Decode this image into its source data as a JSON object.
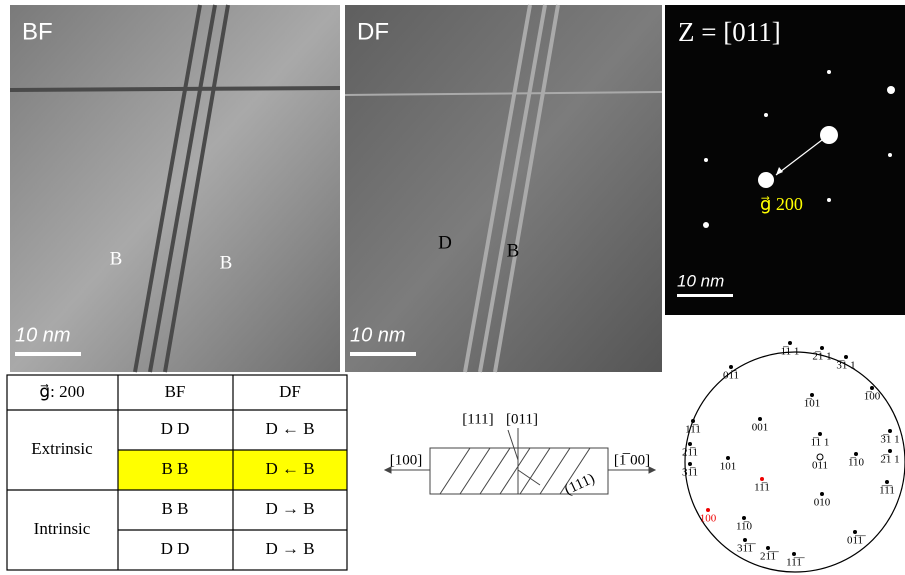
{
  "panels": [
    {
      "label": "BF",
      "markers": [
        "B",
        "B"
      ],
      "scale_bar": "10 nm"
    },
    {
      "label": "DF",
      "markers": [
        "D",
        "B"
      ],
      "scale_bar": "10 nm"
    }
  ],
  "diffraction": {
    "zone": "Z = [011]",
    "g_label": "g⃗ 200",
    "scale_bar": "10 nm"
  },
  "table": {
    "header": [
      "g⃗: 200",
      "BF",
      "DF"
    ],
    "groups": [
      {
        "name": "Extrinsic",
        "rows": [
          [
            "D   D",
            "D ← B"
          ],
          [
            "B   B",
            "D ← B"
          ]
        ]
      },
      {
        "name": "Intrinsic",
        "rows": [
          [
            "B   B",
            "D → B"
          ],
          [
            "D   D",
            "D → B"
          ]
        ]
      }
    ]
  },
  "schematic": {
    "labels": [
      "[111]",
      "[011]",
      "[100]",
      "[1̅ 00]",
      "(111)"
    ]
  },
  "stereogram": {
    "labels": [
      "1̅1 1",
      "2̅1 1",
      "3̅1 1",
      "01̅1",
      "1̅00",
      "1̅01",
      "001",
      "1̅1 1",
      "3̅1 1",
      "2̅1 1",
      "1̅1̅1",
      "1̅10",
      "011",
      "11̅1",
      "21̅1",
      "31̅1",
      "101",
      "11̅1",
      "010",
      "100",
      "11̅0",
      "01̅1̅",
      "31̅1̅",
      "21̅1̅",
      "11̅1̅"
    ]
  }
}
